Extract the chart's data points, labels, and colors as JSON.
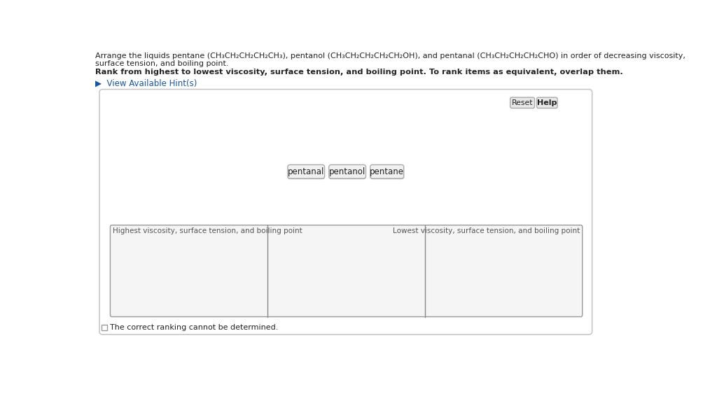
{
  "bg_color": "#ffffff",
  "title_text": "Arrange the liquids pentane (CH₃CH₂CH₂CH₂CH₃), pentanol (CH₃CH₂CH₂CH₂CH₂OH), and pentanal (CH₃CH₂CH₂CH₂CHO) in order of decreasing viscosity,",
  "title_text2": "surface tension, and boiling point.",
  "bold_text": "Rank from highest to lowest viscosity, surface tension, and boiling point. To rank items as equivalent, overlap them.",
  "hint_text": "View Available Hint(s)",
  "button_labels": [
    "pentanal",
    "pentanol",
    "pentane"
  ],
  "reset_label": "Reset",
  "help_label": "Help",
  "left_label": "Highest viscosity, surface tension, and boiling point",
  "right_label": "Lowest viscosity, surface tension, and boiling point",
  "checkbox_text": "The correct ranking cannot be determined.",
  "hint_color": "#1a56a0",
  "text_color": "#222222",
  "gray_text_color": "#555555",
  "outer_box_bg": "#ffffff",
  "outer_box_edge": "#c8c8c8",
  "rank_box_bg": "#f5f5f5",
  "rank_box_edge": "#999999",
  "divider_color": "#888888",
  "btn_bg_outer": "#d4d4d4",
  "btn_bg_inner": "#f0f0f0",
  "btn_edge": "#aaaaaa",
  "reset_btn_bg": "#e8e8e8",
  "reset_btn_edge": "#aaaaaa",
  "checkbox_edge": "#999999"
}
